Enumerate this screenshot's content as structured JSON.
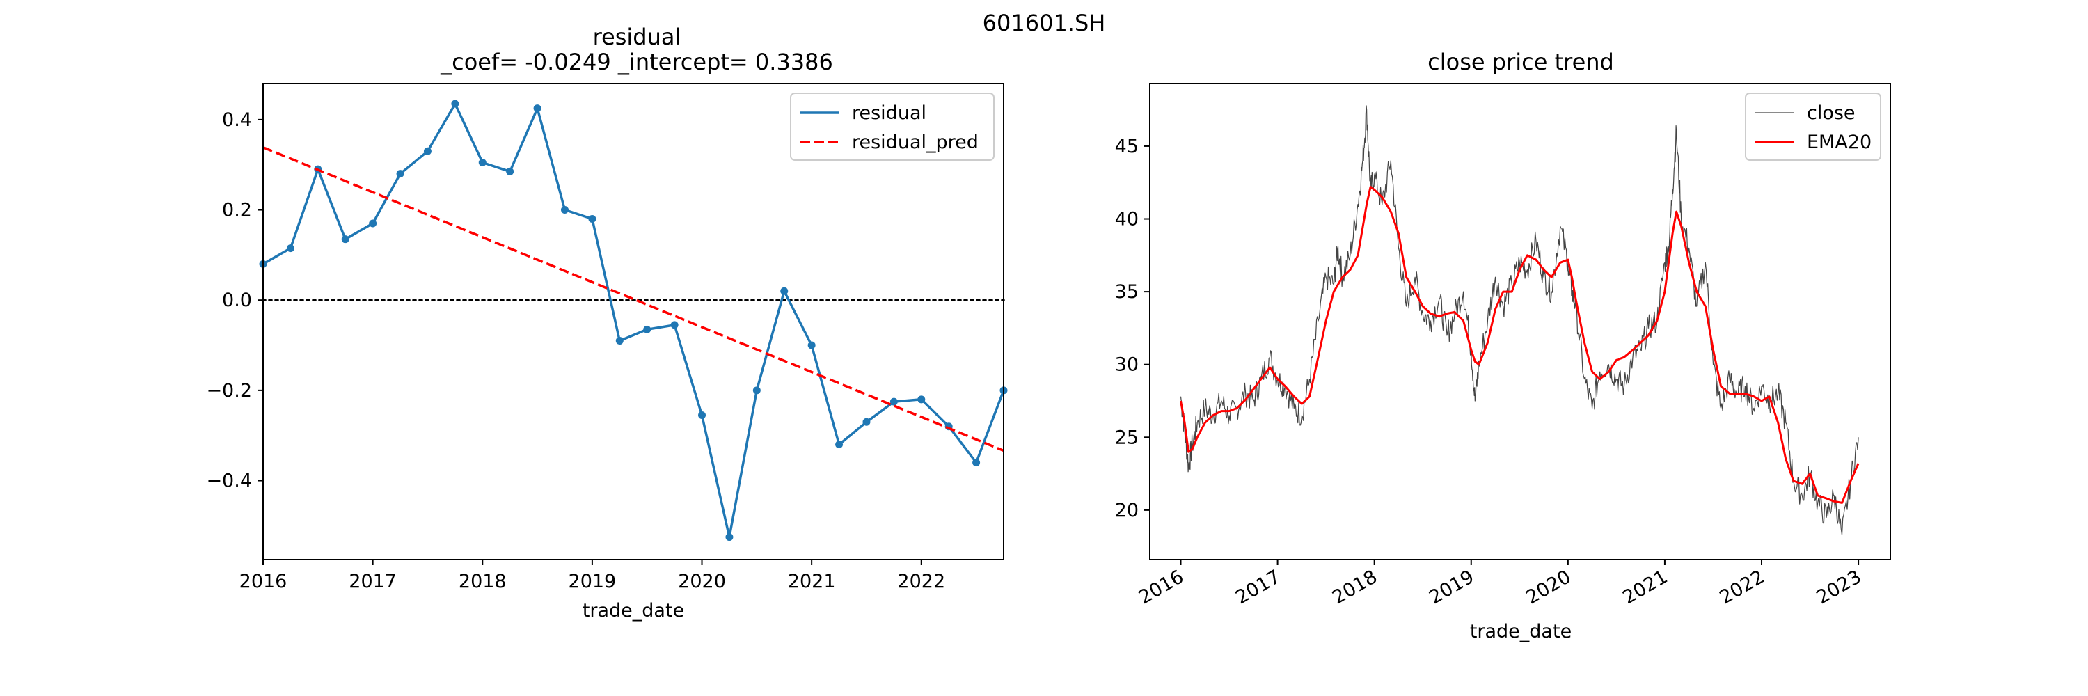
{
  "figure": {
    "suptitle": "601601.SH"
  },
  "chart_data": [
    {
      "type": "line",
      "title": "residual",
      "subtitle": "_coef= -0.0249   _intercept= 0.3386",
      "xlabel": "trade_date",
      "ylabel": "",
      "xlim": [
        2016.0,
        2022.75
      ],
      "ylim": [
        -0.575,
        0.48
      ],
      "xticks": [
        2016,
        2017,
        2018,
        2019,
        2020,
        2021,
        2022
      ],
      "xtick_labels": [
        "2016",
        "2017",
        "2018",
        "2019",
        "2020",
        "2021",
        "2022"
      ],
      "yticks": [
        -0.4,
        -0.2,
        0.0,
        0.2,
        0.4
      ],
      "ytick_labels": [
        "−0.4",
        "−0.2",
        "0.0",
        "0.2",
        "0.4"
      ],
      "grid": false,
      "legend_position": "top-right",
      "reference_line": {
        "y": 0.0,
        "style": "dotted",
        "color": "#000000"
      },
      "series": [
        {
          "name": "residual",
          "color": "#1f77b4",
          "style": "solid-with-dots",
          "x": [
            2016.0,
            2016.25,
            2016.5,
            2016.75,
            2017.0,
            2017.25,
            2017.5,
            2017.75,
            2018.0,
            2018.25,
            2018.5,
            2018.75,
            2019.0,
            2019.25,
            2019.5,
            2019.75,
            2020.0,
            2020.25,
            2020.5,
            2020.75,
            2021.0,
            2021.25,
            2021.5,
            2021.75,
            2022.0,
            2022.25,
            2022.5,
            2022.75
          ],
          "values": [
            0.08,
            0.115,
            0.29,
            0.135,
            0.17,
            0.28,
            0.33,
            0.435,
            0.305,
            0.285,
            0.425,
            0.2,
            0.18,
            -0.09,
            -0.065,
            -0.055,
            -0.255,
            -0.525,
            -0.2,
            0.02,
            -0.1,
            -0.32,
            -0.27,
            -0.225,
            -0.22,
            -0.28,
            -0.36,
            -0.2
          ]
        },
        {
          "name": "residual_pred",
          "color": "#ff0000",
          "style": "dashed",
          "x": [
            2016.0,
            2022.75
          ],
          "values": [
            0.3386,
            -0.3336
          ]
        }
      ]
    },
    {
      "type": "line",
      "title": "close price trend",
      "xlabel": "trade_date",
      "ylabel": "",
      "xlim": [
        2015.68,
        2023.33
      ],
      "ylim": [
        16.6,
        49.3
      ],
      "xticks": [
        2016,
        2017,
        2018,
        2019,
        2020,
        2021,
        2022,
        2023
      ],
      "xtick_labels": [
        "2016",
        "2017",
        "2018",
        "2019",
        "2020",
        "2021",
        "2022",
        "2023"
      ],
      "yticks": [
        20,
        25,
        30,
        35,
        40,
        45
      ],
      "ytick_labels": [
        "20",
        "25",
        "30",
        "35",
        "40",
        "45"
      ],
      "grid": false,
      "legend_position": "top-right",
      "series": [
        {
          "name": "close",
          "color": "#444444",
          "style": "thin-solid",
          "x": [
            2016.0,
            2016.04,
            2016.08,
            2016.12,
            2016.17,
            2016.25,
            2016.33,
            2016.42,
            2016.5,
            2016.58,
            2016.67,
            2016.75,
            2016.83,
            2016.92,
            2017.0,
            2017.08,
            2017.17,
            2017.25,
            2017.33,
            2017.42,
            2017.5,
            2017.58,
            2017.62,
            2017.67,
            2017.75,
            2017.83,
            2017.88,
            2017.92,
            2017.96,
            2018.0,
            2018.08,
            2018.17,
            2018.25,
            2018.33,
            2018.42,
            2018.5,
            2018.58,
            2018.67,
            2018.75,
            2018.83,
            2018.92,
            2019.0,
            2019.04,
            2019.08,
            2019.17,
            2019.25,
            2019.33,
            2019.42,
            2019.5,
            2019.58,
            2019.67,
            2019.75,
            2019.83,
            2019.92,
            2020.0,
            2020.04,
            2020.08,
            2020.17,
            2020.25,
            2020.33,
            2020.42,
            2020.5,
            2020.58,
            2020.67,
            2020.75,
            2020.83,
            2020.92,
            2021.0,
            2021.04,
            2021.08,
            2021.12,
            2021.17,
            2021.25,
            2021.33,
            2021.42,
            2021.5,
            2021.58,
            2021.67,
            2021.75,
            2021.83,
            2021.92,
            2022.0,
            2022.08,
            2022.17,
            2022.25,
            2022.33,
            2022.42,
            2022.5,
            2022.58,
            2022.67,
            2022.75,
            2022.83,
            2022.92,
            2023.0
          ],
          "values": [
            27.8,
            25.5,
            23.0,
            24.5,
            26.0,
            27.0,
            26.5,
            27.5,
            26.5,
            27.0,
            28.0,
            27.5,
            29.0,
            30.5,
            29.0,
            28.5,
            27.0,
            26.5,
            29.0,
            33.0,
            36.0,
            35.5,
            38.0,
            36.0,
            37.5,
            41.0,
            44.0,
            47.5,
            42.0,
            43.0,
            41.0,
            44.0,
            38.0,
            34.0,
            36.0,
            33.5,
            33.0,
            34.5,
            32.0,
            33.5,
            35.0,
            31.0,
            27.5,
            30.0,
            33.0,
            36.0,
            34.0,
            35.5,
            37.0,
            36.5,
            38.5,
            36.0,
            35.0,
            39.5,
            37.0,
            35.0,
            34.0,
            29.0,
            27.0,
            29.5,
            30.0,
            29.0,
            28.5,
            30.5,
            31.0,
            32.5,
            33.0,
            37.0,
            38.0,
            42.0,
            46.0,
            40.0,
            38.0,
            34.0,
            37.0,
            30.0,
            27.0,
            29.0,
            28.0,
            28.5,
            27.0,
            28.5,
            27.5,
            28.0,
            26.0,
            22.0,
            21.0,
            22.5,
            20.5,
            19.5,
            21.0,
            18.3,
            22.0,
            25.0
          ]
        },
        {
          "name": "EMA20",
          "color": "#ff0000",
          "style": "solid",
          "x": [
            2016.0,
            2016.04,
            2016.08,
            2016.12,
            2016.17,
            2016.25,
            2016.33,
            2016.42,
            2016.5,
            2016.58,
            2016.67,
            2016.75,
            2016.83,
            2016.92,
            2017.0,
            2017.08,
            2017.17,
            2017.25,
            2017.33,
            2017.42,
            2017.5,
            2017.58,
            2017.67,
            2017.75,
            2017.83,
            2017.92,
            2017.96,
            2018.0,
            2018.08,
            2018.17,
            2018.25,
            2018.33,
            2018.42,
            2018.5,
            2018.58,
            2018.67,
            2018.75,
            2018.83,
            2018.92,
            2019.0,
            2019.04,
            2019.08,
            2019.17,
            2019.25,
            2019.33,
            2019.42,
            2019.5,
            2019.58,
            2019.67,
            2019.75,
            2019.83,
            2019.92,
            2020.0,
            2020.04,
            2020.08,
            2020.17,
            2020.25,
            2020.33,
            2020.42,
            2020.5,
            2020.58,
            2020.67,
            2020.75,
            2020.83,
            2020.92,
            2021.0,
            2021.04,
            2021.08,
            2021.12,
            2021.17,
            2021.25,
            2021.33,
            2021.42,
            2021.5,
            2021.58,
            2021.67,
            2021.75,
            2021.83,
            2021.92,
            2022.0,
            2022.08,
            2022.17,
            2022.25,
            2022.33,
            2022.42,
            2022.5,
            2022.58,
            2022.67,
            2022.75,
            2022.83,
            2022.92,
            2023.0
          ],
          "values": [
            27.5,
            26.0,
            24.0,
            24.2,
            25.0,
            26.0,
            26.5,
            26.8,
            26.8,
            27.0,
            27.6,
            28.3,
            29.0,
            29.8,
            29.0,
            28.5,
            27.8,
            27.3,
            27.8,
            30.5,
            33.0,
            35.0,
            36.0,
            36.5,
            37.5,
            41.0,
            42.2,
            42.0,
            41.5,
            40.5,
            39.0,
            36.0,
            35.0,
            34.0,
            33.5,
            33.3,
            33.5,
            33.6,
            33.0,
            31.0,
            30.2,
            30.0,
            31.5,
            33.8,
            35.0,
            35.0,
            36.5,
            37.5,
            37.2,
            36.5,
            36.0,
            37.0,
            37.2,
            36.0,
            34.5,
            31.5,
            29.5,
            29.0,
            29.5,
            30.3,
            30.5,
            31.0,
            31.5,
            32.0,
            33.0,
            35.0,
            37.0,
            39.0,
            40.5,
            39.5,
            37.0,
            35.0,
            34.0,
            31.0,
            28.5,
            28.0,
            28.0,
            28.0,
            27.8,
            27.5,
            27.8,
            26.0,
            23.5,
            22.0,
            21.8,
            22.5,
            21.0,
            20.8,
            20.6,
            20.5,
            22.0,
            23.2
          ]
        }
      ]
    }
  ]
}
